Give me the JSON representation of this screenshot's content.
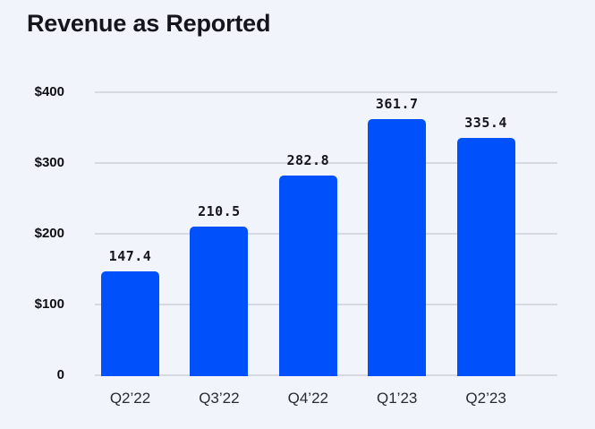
{
  "title": "Revenue as Reported",
  "colors": {
    "background": "#f2f4fb",
    "bar": "#0051fb",
    "gridline": "#d6d9e0",
    "title_text": "#15161c",
    "y_tick_text": "#0e0f13",
    "x_tick_text": "#282b33"
  },
  "chart_data": {
    "type": "bar",
    "title": "Revenue as Reported",
    "categories": [
      "Q2’22",
      "Q3’22",
      "Q4’22",
      "Q1’23",
      "Q2’23"
    ],
    "values": [
      147.4,
      210.5,
      282.8,
      361.7,
      335.4
    ],
    "value_labels": [
      "147.4",
      "210.5",
      "282.8",
      "361.7",
      "335.4"
    ],
    "xlabel": "",
    "ylabel": "",
    "y_ticks": [
      "$400",
      "$300",
      "$200",
      "$100",
      "0"
    ],
    "y_tick_values": [
      400,
      300,
      200,
      100,
      0
    ],
    "ylim": [
      0,
      400
    ],
    "grid": "horizontal",
    "legend": "none",
    "bar_color": "#0051fb"
  }
}
